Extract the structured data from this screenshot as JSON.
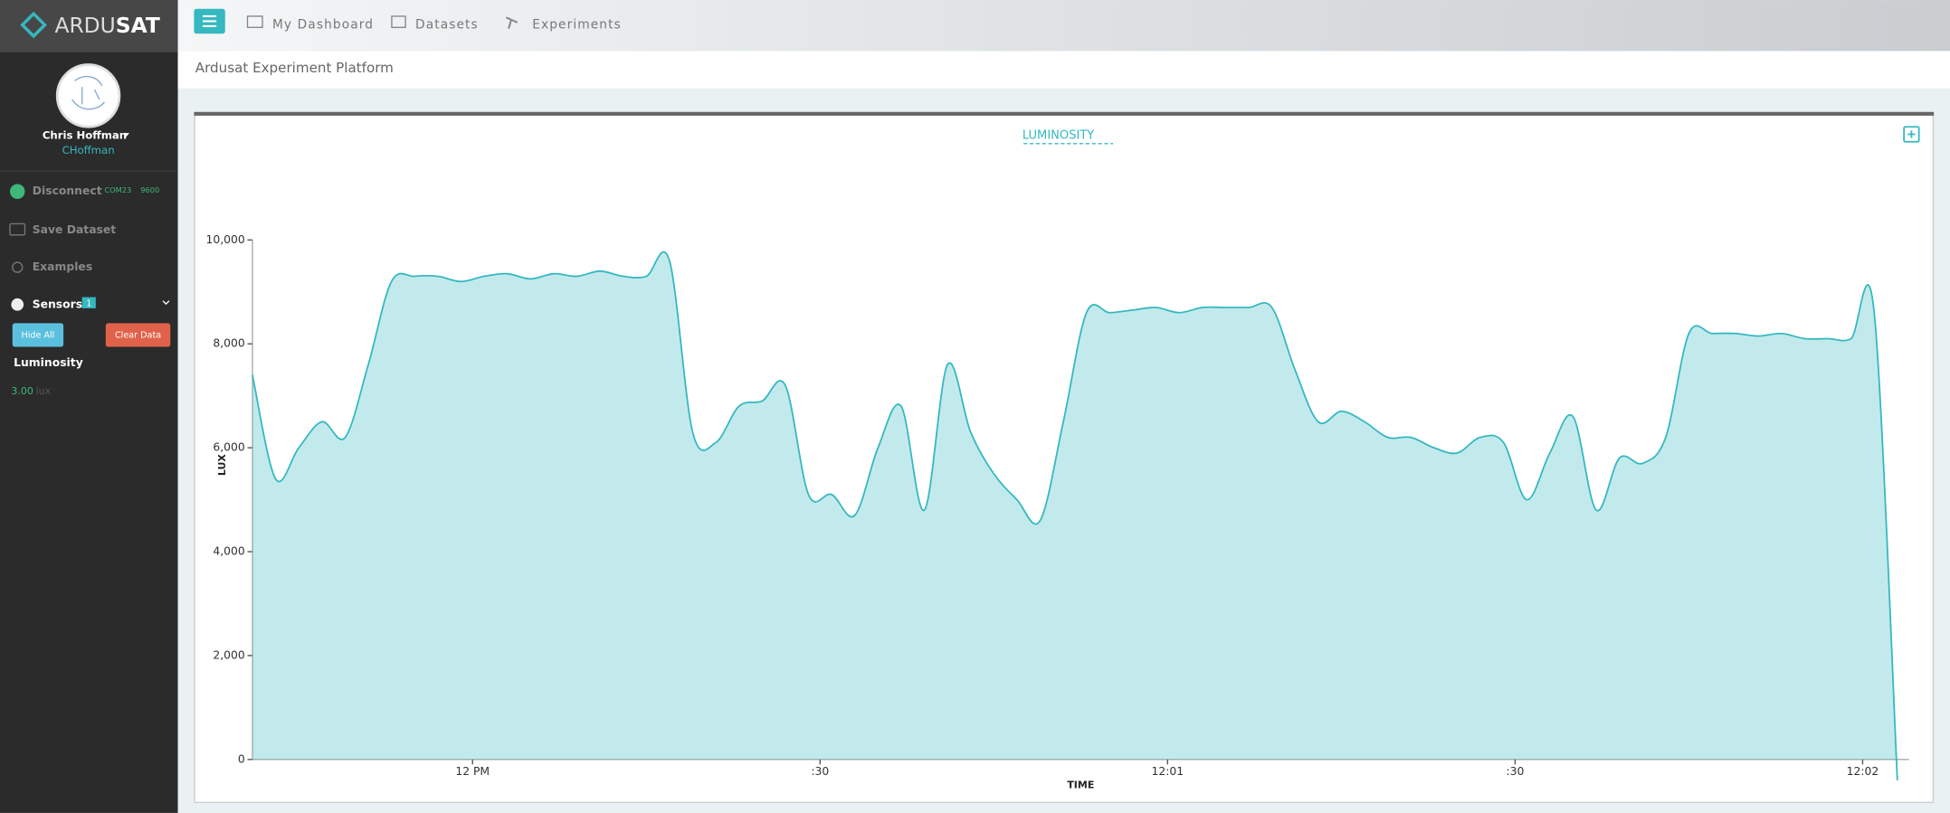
{
  "header": {
    "logo": [
      "ARDU",
      "SAT"
    ],
    "nav": [
      "My Dashboard",
      "Datasets",
      "Experiments"
    ],
    "subtitle": "Ardusat Experiment Platform"
  },
  "sidebar": {
    "user_name": "Chris Hoffman",
    "user_handle": "CHoffman",
    "disconnect": "Disconnect",
    "port": "COM23",
    "baud": "9600",
    "save": "Save Dataset",
    "examples": "Examples",
    "sensors": "Sensors",
    "sensor_count": "1",
    "hide_all": "Hide All",
    "clear_data": "Clear Data",
    "sensor_name": "Luminosity",
    "reading": "3.00",
    "unit": "lux"
  },
  "chart_data": {
    "type": "area",
    "title": "LUMINOSITY",
    "xlabel": "TIME",
    "ylabel": "LUX",
    "color": "#35b8c0",
    "x": [
      "11:59:41",
      "11:59:43",
      "11:59:45",
      "11:59:47",
      "11:59:49",
      "11:59:51",
      "11:59:53",
      "11:59:55",
      "11:59:57",
      "11:59:59",
      "12:00:01",
      "12:00:03",
      "12:00:05",
      "12:00:07",
      "12:00:09",
      "12:00:11",
      "12:00:13",
      "12:00:15",
      "12:00:17",
      "12:00:19",
      "12:00:21",
      "12:00:23",
      "12:00:25",
      "12:00:27",
      "12:00:29",
      "12:00:31",
      "12:00:33",
      "12:00:35",
      "12:00:37",
      "12:00:39",
      "12:00:41",
      "12:00:43",
      "12:00:45",
      "12:00:47",
      "12:00:49",
      "12:00:51",
      "12:00:53",
      "12:00:55",
      "12:00:57",
      "12:00:59",
      "12:01:01",
      "12:01:03",
      "12:01:05",
      "12:01:07",
      "12:01:09",
      "12:01:11",
      "12:01:13",
      "12:01:15",
      "12:01:17",
      "12:01:19",
      "12:01:21",
      "12:01:23",
      "12:01:25",
      "12:01:27",
      "12:01:29",
      "12:01:31",
      "12:01:33",
      "12:01:35",
      "12:01:37",
      "12:01:39",
      "12:01:41",
      "12:01:43",
      "12:01:45",
      "12:01:47",
      "12:01:49",
      "12:01:51",
      "12:01:53",
      "12:01:55",
      "12:01:57",
      "12:01:59",
      "12:02:01",
      "12:02:03"
    ],
    "values": [
      7400,
      5400,
      6000,
      6500,
      6200,
      7600,
      9200,
      9300,
      9300,
      9200,
      9300,
      9350,
      9250,
      9350,
      9300,
      9400,
      9300,
      9300,
      9600,
      6300,
      6100,
      6800,
      6900,
      7200,
      5100,
      5100,
      4700,
      6000,
      6800,
      4800,
      7600,
      6300,
      5500,
      5000,
      4600,
      6500,
      8600,
      8600,
      8650,
      8700,
      8600,
      8700,
      8700,
      8700,
      8700,
      7500,
      6500,
      6700,
      6500,
      6200,
      6200,
      6000,
      5900,
      6200,
      6100,
      5000,
      5900,
      6600,
      4800,
      5800,
      5700,
      6200,
      8200,
      8200,
      8200,
      8150,
      8200,
      8100,
      8100,
      8100,
      8600,
      -400
    ],
    "xlim": [
      "11:59:41",
      "12:02:04"
    ],
    "xticks": [
      {
        "value": "12:00:00",
        "label": "12 PM"
      },
      {
        "value": "12:00:30",
        "label": ":30"
      },
      {
        "value": "12:01:00",
        "label": "12:01"
      },
      {
        "value": "12:01:30",
        "label": ":30"
      },
      {
        "value": "12:02:00",
        "label": "12:02"
      }
    ],
    "ylim": [
      0,
      10000
    ],
    "yticks": [
      0,
      {
        "value": 2000,
        "label": "2,000"
      },
      {
        "value": 4000,
        "label": "4,000"
      },
      {
        "value": 6000,
        "label": "6,000"
      },
      {
        "value": 8000,
        "label": "8,000"
      },
      {
        "value": 10000,
        "label": "10,000"
      }
    ]
  }
}
